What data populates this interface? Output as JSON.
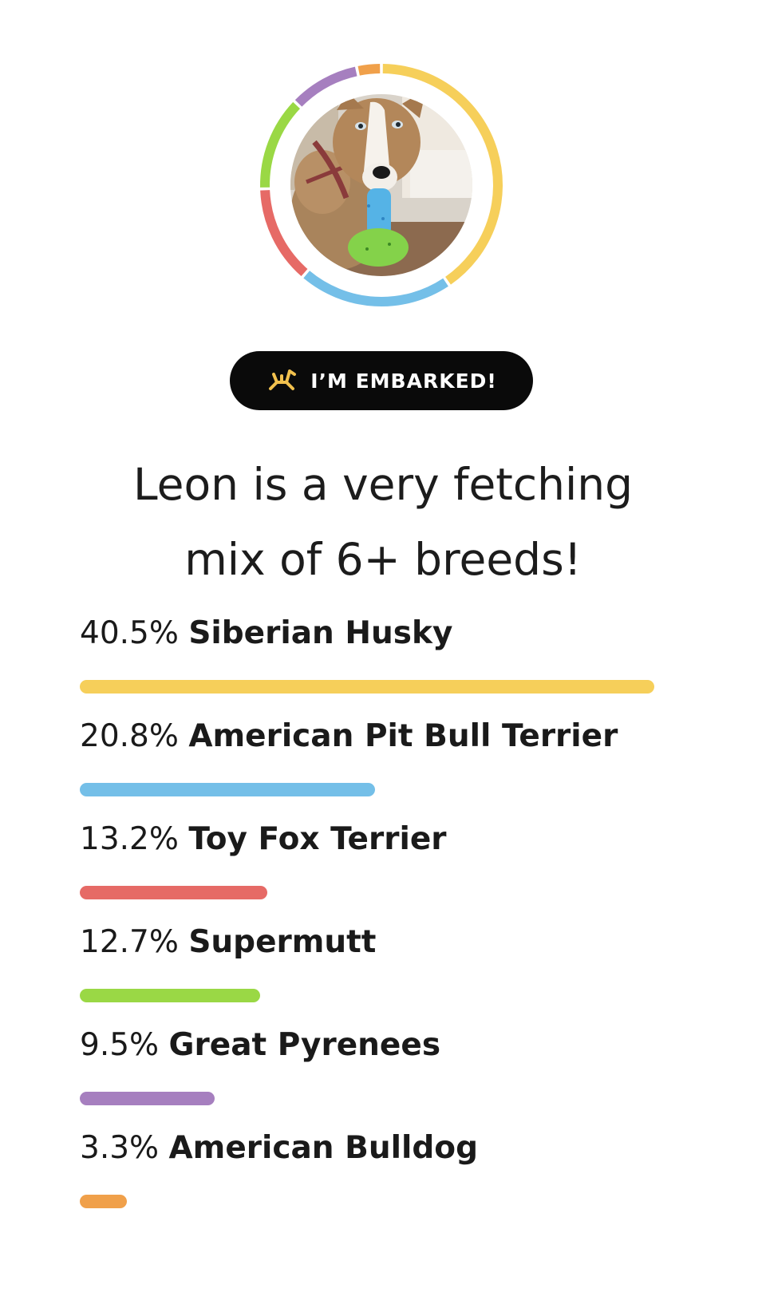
{
  "badge": {
    "label": "I’M EMBARKED!",
    "icon": "embark-dog-logo-icon",
    "icon_color": "#f2c14e"
  },
  "headline": {
    "line1": "Leon is a very fetching",
    "line2": "mix of 6+ breeds!"
  },
  "photo": {
    "subject": "dog-photo"
  },
  "colors": {
    "track": "#ffffff",
    "siberian_husky": "#f6cf5a",
    "american_pit_bull_terrier": "#74bfe8",
    "toy_fox_terrier": "#e66a66",
    "supermutt": "#9ad845",
    "great_pyrenees": "#a67fbf",
    "american_bulldog": "#f0a04a"
  },
  "breeds": [
    {
      "percent_label": "40.5%",
      "name": "Siberian Husky",
      "value": 40.5,
      "color": "#f6cf5a"
    },
    {
      "percent_label": "20.8%",
      "name": "American Pit Bull Terrier",
      "value": 20.8,
      "color": "#74bfe8"
    },
    {
      "percent_label": "13.2%",
      "name": "Toy Fox Terrier",
      "value": 13.2,
      "color": "#e66a66"
    },
    {
      "percent_label": "12.7%",
      "name": "Supermutt",
      "value": 12.7,
      "color": "#9ad845"
    },
    {
      "percent_label": "9.5%",
      "name": "Great Pyrenees",
      "value": 9.5,
      "color": "#a67fbf"
    },
    {
      "percent_label": "3.3%",
      "name": "American Bulldog",
      "value": 3.3,
      "color": "#f0a04a"
    }
  ]
}
